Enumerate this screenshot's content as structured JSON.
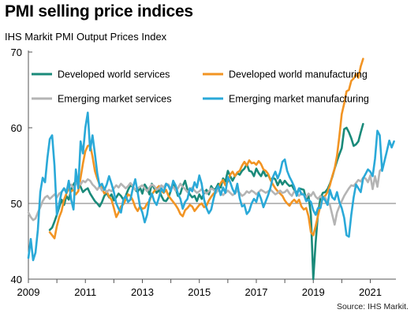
{
  "title": "PMI selling price indices",
  "subtitle": "IHS Markit PMI Output Prices Index",
  "source": "Source: IHS Markit.",
  "chart_data": {
    "type": "line",
    "ylim": [
      40,
      70
    ],
    "yticks": [
      40,
      50,
      60,
      70
    ],
    "xlim": [
      2009.0,
      2021.9
    ],
    "xticks": [
      "2009",
      "2011",
      "2013",
      "2015",
      "2017",
      "2019",
      "2021"
    ],
    "reference_line": 50,
    "grid": false,
    "legend_position": "top",
    "series": [
      {
        "name": "Developed world services",
        "color": "#1a8a7a",
        "start": 2009.75,
        "step": 0.08333,
        "values": [
          46.5,
          46.8,
          47.6,
          48.5,
          49.5,
          50.5,
          49.8,
          51.0,
          50.5,
          51.8,
          52.5,
          53.0,
          52.8,
          52.2,
          51.5,
          51.8,
          52.0,
          51.3,
          50.8,
          50.3,
          50.0,
          49.6,
          50.2,
          51.0,
          51.4,
          50.8,
          51.2,
          50.4,
          50.8,
          51.3,
          51.0,
          50.5,
          51.0,
          51.8,
          52.4,
          52.2,
          51.8,
          51.5,
          52.1,
          51.3,
          52.5,
          52.0,
          51.2,
          52.6,
          52.0,
          51.4,
          51.8,
          51.0,
          50.4,
          50.3,
          50.8,
          51.7,
          52.8,
          52.0,
          51.0,
          51.3,
          52.3,
          53.0,
          51.8,
          51.2,
          50.8,
          51.0,
          50.3,
          51.2,
          50.6,
          51.4,
          51.8,
          51.2,
          52.3,
          51.8,
          52.0,
          52.6,
          52.1,
          53.3,
          52.9,
          54.3,
          53.6,
          53.0,
          53.6,
          54.0,
          53.8,
          54.3,
          54.6,
          55.2,
          54.3,
          54.2,
          53.6,
          54.6,
          54.0,
          53.6,
          54.3,
          53.6,
          53.8,
          53.1,
          53.4,
          53.2,
          52.4,
          53.1,
          52.5,
          53.0,
          52.6,
          52.3,
          52.4,
          51.8,
          51.3,
          52.0,
          51.9,
          51.8,
          50.5,
          51.0,
          48.5,
          40.0,
          44.8,
          48.7,
          50.7,
          51.4,
          51.5,
          51.9,
          52.6,
          53.5,
          54.6,
          55.6,
          56.5,
          57.3,
          59.8,
          60.0,
          59.4,
          58.6,
          57.6,
          57.8,
          58.2,
          59.4,
          60.5
        ]
      },
      {
        "name": "Developed world manufacturing",
        "color": "#f29423",
        "start": 2009.75,
        "step": 0.08333,
        "values": [
          46.2,
          45.8,
          45.4,
          47.0,
          48.2,
          49.0,
          50.5,
          51.3,
          52.0,
          51.6,
          51.8,
          51.2,
          51.6,
          53.4,
          55.3,
          56.9,
          57.6,
          57.7,
          56.2,
          54.3,
          53.3,
          52.5,
          52.0,
          51.3,
          51.6,
          50.9,
          50.5,
          49.4,
          48.2,
          48.8,
          49.6,
          49.9,
          50.5,
          51.2,
          51.0,
          50.4,
          49.5,
          49.0,
          49.6,
          49.3,
          49.4,
          50.0,
          50.3,
          51.2,
          51.6,
          52.0,
          52.3,
          51.6,
          51.4,
          51.8,
          51.0,
          50.6,
          50.2,
          49.8,
          49.3,
          48.6,
          48.3,
          49.1,
          49.4,
          49.8,
          49.6,
          49.0,
          49.4,
          49.8,
          50.0,
          49.5,
          49.7,
          50.4,
          50.9,
          51.3,
          51.5,
          52.1,
          52.7,
          53.1,
          52.4,
          52.9,
          53.8,
          54.2,
          53.6,
          54.1,
          54.3,
          55.0,
          55.5,
          55.0,
          55.7,
          55.3,
          55.4,
          55.1,
          55.6,
          55.2,
          54.5,
          54.3,
          53.9,
          53.1,
          52.5,
          52.0,
          51.6,
          51.3,
          51.0,
          50.4,
          50.0,
          49.7,
          50.2,
          50.5,
          50.1,
          50.5,
          49.6,
          49.2,
          49.4,
          48.3,
          46.2,
          45.8,
          47.0,
          48.4,
          49.7,
          50.8,
          51.0,
          51.5,
          52.4,
          53.6,
          54.6,
          56.3,
          58.9,
          61.8,
          63.2,
          64.8,
          65.0,
          66.2,
          66.5,
          67.1,
          66.6,
          68.1,
          69.1
        ]
      },
      {
        "name": "Emerging market services",
        "color": "#b4b4b4",
        "start": 2009.0,
        "step": 0.08333,
        "values": [
          48.8,
          48.2,
          47.8,
          48.0,
          48.8,
          49.5,
          50.3,
          50.8,
          51.0,
          50.6,
          50.9,
          51.2,
          50.8,
          51.3,
          51.5,
          52.0,
          51.7,
          52.3,
          52.5,
          52.0,
          52.6,
          52.9,
          52.5,
          53.0,
          52.8,
          53.2,
          53.0,
          52.5,
          52.2,
          51.8,
          52.3,
          51.7,
          52.0,
          51.5,
          51.8,
          51.6,
          52.0,
          52.4,
          52.1,
          52.6,
          52.3,
          52.0,
          52.3,
          52.7,
          52.3,
          51.8,
          52.0,
          52.2,
          52.4,
          52.0,
          51.6,
          52.1,
          52.5,
          52.3,
          51.8,
          52.0,
          52.4,
          52.1,
          52.6,
          52.5,
          51.9,
          52.2,
          51.7,
          52.0,
          52.6,
          52.2,
          51.9,
          51.5,
          51.8,
          52.1,
          51.7,
          51.4,
          51.6,
          51.9,
          51.6,
          51.3,
          51.6,
          52.0,
          51.8,
          51.4,
          51.8,
          51.4,
          51.1,
          51.4,
          51.7,
          51.4,
          51.1,
          51.3,
          51.7,
          51.4,
          51.0,
          51.2,
          51.6,
          51.4,
          51.7,
          51.5,
          51.2,
          51.5,
          51.8,
          51.6,
          51.4,
          51.6,
          51.8,
          51.5,
          51.2,
          51.4,
          51.7,
          51.4,
          51.5,
          51.8,
          51.3,
          51.0,
          51.6,
          51.3,
          51.0,
          51.4,
          51.1,
          50.8,
          51.3,
          51.0,
          51.5,
          50.9,
          50.6,
          51.0,
          50.5,
          50.8,
          50.2,
          49.8,
          48.5,
          47.2,
          48.8,
          49.6,
          50.3,
          51.0,
          51.5,
          52.0,
          52.4,
          52.3,
          52.7,
          53.1,
          52.9,
          53.4,
          53.3,
          52.8,
          53.7,
          51.9,
          53.6,
          52.2,
          54.3,
          54.6
        ]
      },
      {
        "name": "Emerging market manufacturing",
        "color": "#2aa9d8",
        "start": 2009.0,
        "step": 0.08333,
        "values": [
          42.8,
          45.3,
          42.5,
          43.5,
          46.5,
          51.5,
          53.4,
          52.8,
          56.0,
          58.5,
          59.0,
          55.0,
          48.5,
          50.0,
          51.5,
          52.0,
          51.4,
          53.0,
          50.5,
          49.2,
          54.5,
          52.0,
          58.2,
          56.6,
          60.0,
          62.0,
          57.0,
          59.0,
          56.6,
          54.0,
          52.3,
          52.6,
          51.8,
          52.5,
          53.6,
          52.6,
          51.5,
          50.0,
          49.3,
          48.8,
          50.5,
          51.0,
          50.2,
          50.5,
          52.0,
          53.2,
          51.5,
          49.6,
          48.8,
          47.5,
          48.5,
          50.5,
          51.3,
          50.3,
          49.8,
          50.8,
          52.0,
          51.5,
          52.6,
          52.3,
          51.6,
          53.0,
          52.4,
          51.3,
          50.6,
          49.3,
          50.2,
          50.6,
          52.0,
          51.6,
          52.8,
          52.1,
          53.7,
          52.6,
          50.5,
          49.4,
          48.7,
          49.2,
          50.6,
          51.8,
          52.3,
          51.1,
          52.1,
          51.4,
          53.5,
          52.8,
          51.9,
          51.3,
          52.6,
          50.7,
          49.6,
          49.8,
          48.6,
          49.0,
          50.0,
          50.6,
          50.2,
          51.4,
          50.6,
          49.5,
          50.3,
          51.1,
          52.1,
          53.5,
          54.2,
          53.3,
          54.1,
          55.5,
          55.8,
          54.3,
          53.5,
          52.9,
          52.2,
          51.0,
          52.0,
          51.2,
          51.2,
          50.3,
          50.5,
          50.2,
          49.1,
          48.5,
          49.4,
          49.4,
          50.9,
          50.4,
          49.8,
          51.8,
          50.8,
          50.5,
          51.5,
          50.2,
          49.4,
          48.1,
          45.8,
          45.6,
          48.5,
          50.8,
          52.5,
          52.0,
          51.5,
          53.3,
          53.9,
          54.5,
          54.2,
          53.6,
          55.9,
          59.6,
          59.0,
          54.3,
          55.6,
          56.9,
          58.3,
          57.4,
          58.2
        ]
      }
    ]
  }
}
